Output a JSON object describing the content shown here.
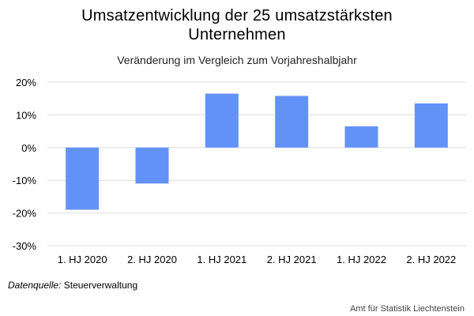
{
  "chart_data": {
    "type": "bar",
    "title_line1": "Umsatzentwicklung der 25 umsatzstärksten",
    "title_line2": "Unternehmen",
    "subtitle": "Veränderung im Vergleich zum Vorjahreshalbjahr",
    "categories": [
      "1. HJ 2020",
      "2. HJ 2020",
      "1. HJ 2021",
      "2. HJ 2021",
      "1. HJ 2022",
      "2. HJ 2022"
    ],
    "values": [
      -19,
      -11,
      16.5,
      15.8,
      6.5,
      13.5
    ],
    "unit": "%",
    "ylim": [
      -30,
      20
    ],
    "yticks": [
      20,
      10,
      0,
      -10,
      -20,
      -30
    ],
    "ytick_labels": [
      "20%",
      "10%",
      "0%",
      "-10%",
      "-20%",
      "-30%"
    ],
    "grid": true,
    "bar_color": "#6392f7"
  },
  "footer": {
    "source_label": "Datenquelle:",
    "source_value": "Steuerverwaltung",
    "credit": "Amt für Statistik Liechtenstein"
  }
}
